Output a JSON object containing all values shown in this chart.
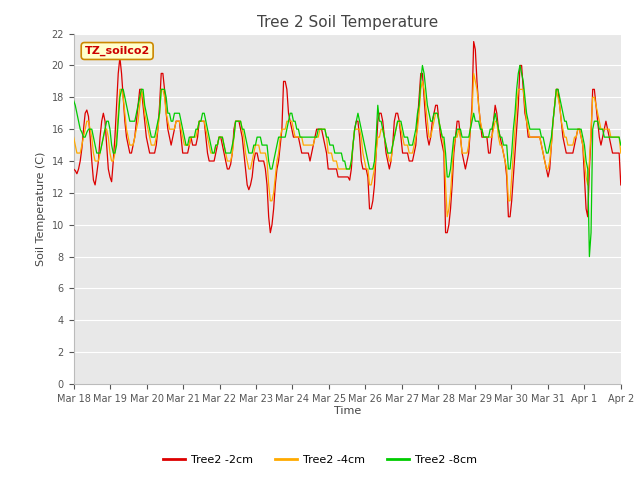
{
  "title": "Tree 2 Soil Temperature",
  "xlabel": "Time",
  "ylabel": "Soil Temperature (C)",
  "legend_label": "TZ_soilco2",
  "series_labels": [
    "Tree2 -2cm",
    "Tree2 -4cm",
    "Tree2 -8cm"
  ],
  "series_colors": [
    "#dd0000",
    "#ffaa00",
    "#00cc00"
  ],
  "ylim": [
    0,
    22
  ],
  "yticks": [
    0,
    2,
    4,
    6,
    8,
    10,
    12,
    14,
    16,
    18,
    20,
    22
  ],
  "background_color": "#ffffff",
  "plot_bg_color": "#e8e8e8",
  "grid_color": "#ffffff",
  "title_fontsize": 11,
  "axis_fontsize": 8,
  "tick_fontsize": 7,
  "xtick_labels": [
    "Mar 18",
    "Mar 19",
    "Mar 20",
    "Mar 21",
    "Mar 22",
    "Mar 23",
    "Mar 24",
    "Mar 25",
    "Mar 26",
    "Mar 27",
    "Mar 28",
    "Mar 29",
    "Mar 30",
    "Mar 31",
    "Apr 1",
    "Apr 2"
  ],
  "tree2_2cm": [
    13.5,
    13.4,
    13.2,
    13.5,
    14.0,
    14.8,
    16.0,
    17.0,
    17.2,
    16.8,
    15.5,
    14.0,
    12.8,
    12.5,
    13.2,
    14.0,
    15.5,
    16.5,
    17.0,
    16.5,
    15.0,
    13.5,
    13.0,
    12.7,
    14.0,
    15.5,
    17.5,
    19.5,
    20.5,
    19.5,
    18.0,
    16.5,
    15.5,
    15.0,
    14.5,
    14.5,
    15.0,
    15.5,
    16.5,
    17.5,
    18.5,
    18.5,
    17.5,
    16.5,
    15.5,
    15.0,
    14.5,
    14.5,
    14.5,
    14.5,
    15.0,
    16.0,
    17.5,
    19.5,
    19.5,
    18.5,
    17.0,
    16.0,
    15.5,
    15.0,
    15.5,
    16.0,
    16.5,
    16.5,
    16.5,
    15.5,
    14.5,
    14.5,
    14.5,
    14.5,
    15.0,
    15.5,
    15.0,
    15.0,
    15.0,
    15.5,
    16.5,
    16.5,
    16.5,
    16.5,
    15.5,
    14.5,
    14.0,
    14.0,
    14.0,
    14.0,
    14.5,
    15.0,
    15.5,
    15.5,
    15.0,
    14.5,
    14.0,
    13.5,
    13.5,
    13.8,
    14.5,
    16.0,
    16.5,
    16.5,
    16.5,
    16.0,
    15.5,
    14.5,
    13.5,
    12.5,
    12.2,
    12.5,
    13.0,
    14.0,
    14.5,
    14.5,
    14.0,
    14.0,
    14.0,
    14.0,
    13.5,
    12.5,
    10.5,
    9.5,
    10.0,
    11.0,
    12.5,
    13.5,
    14.0,
    15.0,
    16.0,
    19.0,
    19.0,
    18.5,
    17.0,
    16.5,
    16.0,
    15.5,
    15.5,
    15.5,
    15.5,
    15.0,
    14.5,
    14.5,
    14.5,
    14.5,
    14.5,
    14.0,
    14.5,
    15.0,
    15.5,
    16.0,
    16.0,
    16.0,
    16.0,
    15.5,
    15.0,
    14.5,
    13.5,
    13.5,
    13.5,
    13.5,
    13.5,
    13.5,
    13.0,
    13.0,
    13.0,
    13.0,
    13.0,
    13.0,
    13.0,
    12.8,
    13.5,
    15.0,
    16.0,
    16.5,
    16.5,
    15.5,
    14.0,
    13.5,
    13.5,
    13.5,
    13.0,
    11.0,
    11.0,
    11.5,
    12.5,
    14.5,
    16.5,
    17.0,
    17.0,
    16.5,
    15.5,
    14.5,
    14.0,
    13.5,
    14.0,
    15.0,
    16.5,
    17.0,
    17.0,
    16.5,
    15.5,
    14.5,
    14.5,
    14.5,
    14.5,
    14.0,
    14.0,
    14.0,
    14.5,
    15.0,
    16.5,
    18.0,
    19.5,
    19.5,
    18.0,
    16.5,
    15.5,
    15.0,
    15.5,
    16.5,
    17.0,
    17.5,
    17.5,
    16.5,
    15.5,
    15.0,
    14.5,
    9.5,
    9.5,
    10.0,
    11.0,
    12.5,
    14.5,
    15.5,
    16.5,
    16.5,
    15.5,
    14.5,
    14.0,
    13.5,
    14.0,
    14.5,
    16.0,
    17.5,
    21.5,
    21.0,
    19.0,
    17.5,
    16.5,
    15.5,
    15.5,
    15.5,
    15.5,
    14.5,
    14.5,
    15.5,
    16.5,
    17.5,
    17.0,
    16.0,
    15.5,
    15.0,
    14.5,
    14.0,
    13.0,
    10.5,
    10.5,
    11.5,
    13.0,
    14.5,
    16.0,
    17.5,
    20.0,
    20.0,
    18.5,
    17.0,
    16.5,
    15.5,
    15.5,
    15.5,
    15.5,
    15.5,
    15.5,
    15.5,
    15.5,
    15.0,
    14.5,
    14.0,
    13.5,
    13.0,
    13.5,
    15.0,
    16.5,
    17.5,
    18.5,
    18.5,
    17.5,
    16.5,
    15.5,
    15.0,
    14.5,
    14.5,
    14.5,
    14.5,
    14.5,
    15.0,
    15.5,
    16.0,
    16.0,
    15.5,
    15.0,
    13.0,
    11.0,
    10.5,
    13.5,
    15.5,
    18.5,
    18.5,
    17.5,
    16.5,
    15.5,
    15.0,
    15.5,
    16.0,
    16.5,
    16.0,
    15.5,
    15.0,
    14.5,
    14.5,
    14.5,
    14.5,
    14.5,
    12.5
  ],
  "tree2_4cm": [
    15.5,
    15.0,
    14.5,
    14.5,
    14.5,
    15.0,
    15.5,
    16.0,
    16.5,
    16.5,
    16.0,
    15.5,
    14.5,
    14.0,
    14.0,
    14.0,
    14.5,
    15.0,
    15.5,
    16.0,
    16.0,
    15.5,
    14.5,
    14.0,
    14.0,
    14.5,
    15.5,
    17.0,
    18.5,
    18.5,
    18.0,
    17.0,
    16.0,
    15.5,
    15.0,
    15.0,
    15.0,
    15.5,
    16.0,
    16.5,
    17.5,
    18.5,
    18.0,
    17.0,
    16.5,
    16.0,
    15.5,
    15.0,
    15.0,
    15.0,
    15.5,
    16.0,
    17.0,
    18.5,
    18.5,
    18.0,
    17.0,
    16.5,
    16.0,
    16.0,
    16.0,
    16.0,
    16.5,
    16.5,
    16.5,
    16.0,
    15.5,
    15.0,
    15.0,
    15.0,
    15.0,
    15.5,
    15.5,
    15.5,
    15.5,
    16.0,
    16.5,
    16.5,
    16.5,
    16.5,
    16.0,
    15.5,
    15.0,
    14.5,
    14.5,
    14.5,
    15.0,
    15.0,
    15.5,
    15.5,
    15.5,
    15.0,
    14.5,
    14.0,
    14.0,
    14.0,
    14.5,
    15.5,
    16.5,
    16.5,
    16.5,
    16.5,
    16.0,
    15.5,
    14.5,
    14.0,
    13.5,
    13.5,
    14.0,
    14.5,
    15.0,
    15.0,
    15.0,
    14.5,
    14.5,
    14.5,
    14.5,
    14.0,
    12.5,
    11.5,
    11.5,
    12.0,
    13.0,
    14.0,
    14.5,
    15.5,
    16.0,
    16.0,
    16.0,
    16.5,
    16.5,
    16.5,
    16.5,
    16.0,
    15.5,
    15.5,
    15.5,
    15.5,
    15.5,
    15.0,
    15.0,
    15.0,
    15.0,
    15.0,
    15.0,
    15.0,
    15.5,
    15.5,
    15.5,
    16.0,
    16.0,
    16.0,
    16.0,
    15.5,
    14.5,
    14.5,
    14.5,
    14.0,
    14.0,
    14.0,
    13.5,
    13.5,
    13.5,
    13.5,
    13.5,
    13.5,
    13.5,
    13.5,
    14.0,
    15.0,
    16.0,
    16.0,
    16.0,
    16.0,
    15.5,
    14.5,
    14.0,
    13.5,
    13.5,
    12.5,
    12.5,
    13.0,
    13.5,
    14.5,
    15.5,
    15.5,
    16.0,
    16.0,
    15.5,
    15.0,
    14.5,
    14.0,
    14.0,
    15.0,
    15.5,
    16.0,
    16.5,
    16.5,
    16.0,
    15.5,
    15.0,
    15.0,
    15.0,
    14.5,
    14.5,
    14.5,
    15.0,
    15.5,
    16.0,
    17.0,
    18.5,
    19.0,
    18.5,
    17.5,
    16.5,
    15.5,
    15.5,
    16.0,
    16.5,
    17.0,
    17.0,
    16.5,
    16.0,
    15.5,
    15.0,
    12.5,
    10.5,
    11.0,
    12.0,
    13.5,
    15.0,
    15.5,
    15.5,
    16.0,
    15.5,
    14.5,
    14.5,
    14.5,
    14.5,
    15.0,
    16.0,
    17.0,
    19.5,
    19.0,
    18.5,
    17.5,
    16.5,
    16.0,
    15.5,
    15.5,
    15.5,
    15.5,
    15.5,
    15.5,
    16.0,
    16.5,
    16.5,
    15.5,
    15.0,
    15.0,
    14.5,
    14.0,
    13.5,
    11.5,
    11.5,
    13.0,
    14.5,
    16.0,
    17.5,
    18.5,
    18.5,
    18.5,
    18.5,
    17.5,
    16.5,
    16.0,
    15.5,
    15.5,
    15.5,
    15.5,
    15.5,
    15.5,
    15.5,
    15.0,
    14.5,
    14.0,
    13.5,
    13.5,
    14.0,
    15.0,
    16.5,
    17.5,
    18.5,
    18.0,
    17.5,
    16.5,
    16.0,
    15.5,
    15.5,
    15.0,
    15.0,
    15.0,
    15.0,
    15.5,
    15.5,
    16.0,
    16.0,
    15.5,
    15.0,
    14.0,
    13.0,
    12.5,
    14.0,
    16.0,
    18.0,
    18.0,
    17.5,
    17.0,
    16.5,
    16.0,
    16.0,
    16.0,
    16.0,
    16.0,
    16.0,
    15.5,
    15.5,
    15.5,
    15.5,
    15.5,
    15.5,
    14.5
  ],
  "tree2_8cm": [
    17.8,
    17.5,
    17.0,
    16.5,
    16.0,
    15.8,
    15.5,
    15.5,
    15.8,
    16.0,
    16.0,
    16.0,
    15.5,
    15.0,
    14.5,
    14.5,
    14.5,
    15.0,
    15.5,
    16.0,
    16.5,
    16.5,
    16.0,
    15.0,
    14.5,
    14.5,
    15.0,
    16.5,
    18.0,
    18.5,
    18.5,
    18.0,
    17.5,
    17.0,
    16.5,
    16.5,
    16.5,
    16.5,
    17.0,
    17.5,
    18.0,
    18.5,
    18.5,
    17.5,
    17.0,
    16.5,
    16.0,
    15.5,
    15.5,
    15.5,
    16.0,
    16.5,
    17.0,
    18.5,
    18.5,
    18.5,
    18.0,
    17.0,
    17.0,
    16.5,
    16.5,
    17.0,
    17.0,
    17.0,
    17.0,
    16.5,
    16.0,
    15.5,
    15.0,
    15.0,
    15.5,
    15.5,
    15.5,
    15.5,
    16.0,
    16.0,
    16.5,
    16.5,
    17.0,
    17.0,
    16.5,
    16.0,
    15.5,
    15.0,
    14.5,
    14.5,
    15.0,
    15.0,
    15.5,
    15.5,
    15.5,
    15.0,
    14.5,
    14.5,
    14.5,
    14.5,
    15.0,
    15.5,
    16.5,
    16.5,
    16.5,
    16.5,
    16.0,
    16.0,
    15.5,
    15.0,
    14.5,
    14.5,
    14.5,
    15.0,
    15.0,
    15.5,
    15.5,
    15.5,
    15.0,
    15.0,
    15.0,
    15.0,
    14.0,
    13.5,
    13.5,
    14.0,
    14.5,
    15.0,
    15.5,
    15.5,
    15.5,
    15.5,
    15.5,
    16.0,
    16.5,
    17.0,
    17.0,
    16.5,
    16.5,
    16.0,
    16.0,
    15.5,
    15.5,
    15.5,
    15.5,
    15.5,
    15.5,
    15.5,
    15.5,
    15.5,
    15.5,
    15.5,
    16.0,
    16.0,
    16.0,
    16.0,
    16.0,
    15.5,
    15.5,
    15.0,
    15.0,
    15.0,
    14.5,
    14.5,
    14.5,
    14.5,
    14.5,
    14.0,
    14.0,
    13.5,
    13.5,
    13.5,
    14.0,
    15.0,
    16.0,
    16.5,
    17.0,
    16.5,
    16.0,
    15.5,
    15.0,
    14.5,
    14.0,
    13.5,
    13.5,
    13.5,
    14.0,
    15.5,
    17.5,
    16.5,
    16.5,
    16.0,
    15.5,
    15.0,
    14.5,
    14.5,
    14.5,
    15.0,
    15.5,
    16.0,
    16.5,
    16.5,
    16.5,
    16.0,
    15.5,
    15.5,
    15.5,
    15.0,
    15.0,
    15.0,
    15.5,
    16.0,
    17.0,
    17.5,
    19.0,
    20.0,
    19.5,
    18.5,
    17.5,
    17.0,
    16.5,
    16.5,
    17.0,
    17.0,
    17.0,
    16.5,
    16.0,
    15.5,
    15.5,
    14.5,
    13.0,
    13.0,
    13.5,
    14.5,
    15.5,
    15.5,
    16.0,
    16.0,
    16.0,
    15.5,
    15.5,
    15.5,
    15.5,
    15.5,
    16.0,
    16.5,
    17.0,
    16.5,
    16.5,
    16.5,
    16.0,
    16.0,
    15.5,
    15.5,
    15.5,
    15.5,
    16.0,
    16.0,
    16.5,
    17.0,
    16.5,
    16.0,
    15.5,
    15.5,
    15.0,
    15.0,
    15.0,
    13.5,
    13.5,
    14.5,
    16.0,
    17.0,
    18.5,
    19.5,
    20.0,
    19.5,
    19.0,
    18.0,
    17.0,
    16.5,
    16.0,
    16.0,
    16.0,
    16.0,
    16.0,
    16.0,
    16.0,
    15.5,
    15.5,
    15.0,
    14.5,
    14.5,
    15.0,
    15.5,
    16.5,
    17.5,
    18.5,
    18.5,
    18.0,
    17.5,
    17.0,
    16.5,
    16.5,
    16.0,
    16.0,
    16.0,
    16.0,
    16.0,
    16.0,
    16.0,
    16.0,
    16.0,
    15.5,
    15.0,
    14.0,
    13.5,
    8.0,
    9.5,
    16.0,
    16.5,
    16.5,
    16.5,
    16.0,
    16.0,
    16.0,
    15.5,
    15.5,
    15.5,
    15.5,
    15.5,
    15.5,
    15.5,
    15.5,
    15.5,
    15.5,
    15.0
  ]
}
